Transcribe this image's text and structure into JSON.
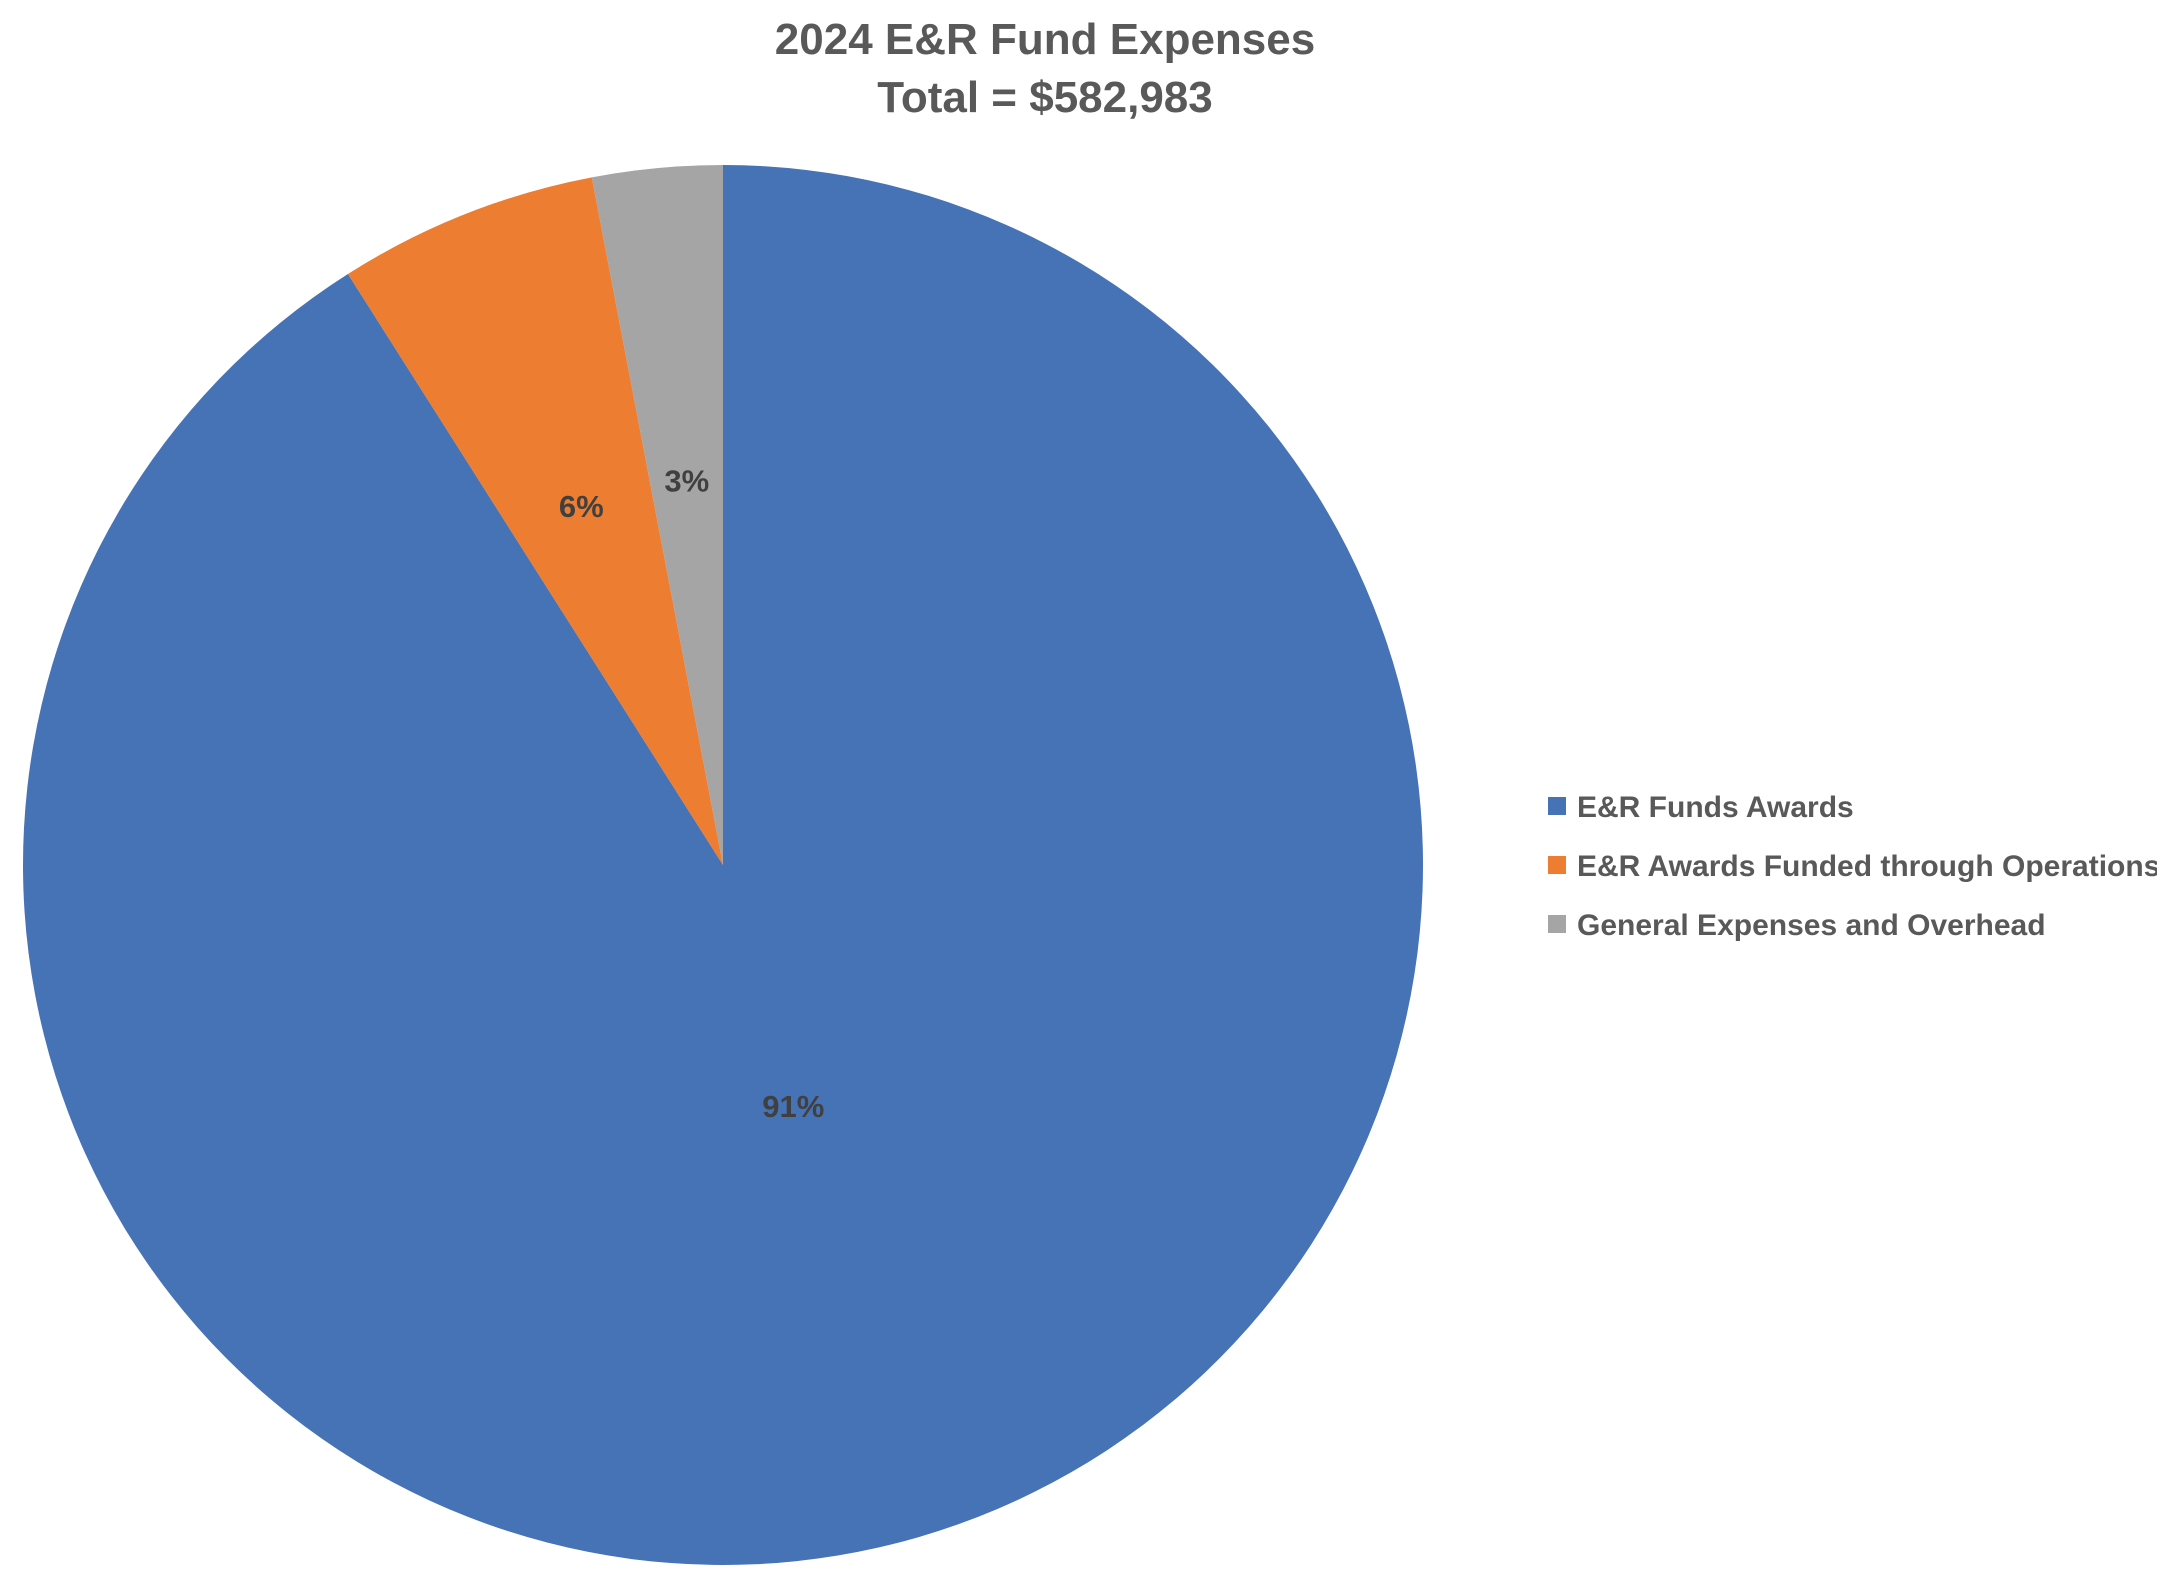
{
  "chart_data": {
    "type": "pie",
    "title": "2024 E&R Fund Expenses",
    "subtitle": "Total = $582,983",
    "categories": [
      "E&R Funds Awards",
      "E&R Awards Funded through Operations",
      "General Expenses and Overhead"
    ],
    "values": [
      91,
      6,
      3
    ],
    "value_labels": [
      "91%",
      "6%",
      "3%"
    ],
    "colors": [
      "#4672B6",
      "#ED7D31",
      "#A5A5A5"
    ],
    "start_angle": "12 o'clock",
    "direction": "clockwise",
    "legend_placement": "right"
  }
}
